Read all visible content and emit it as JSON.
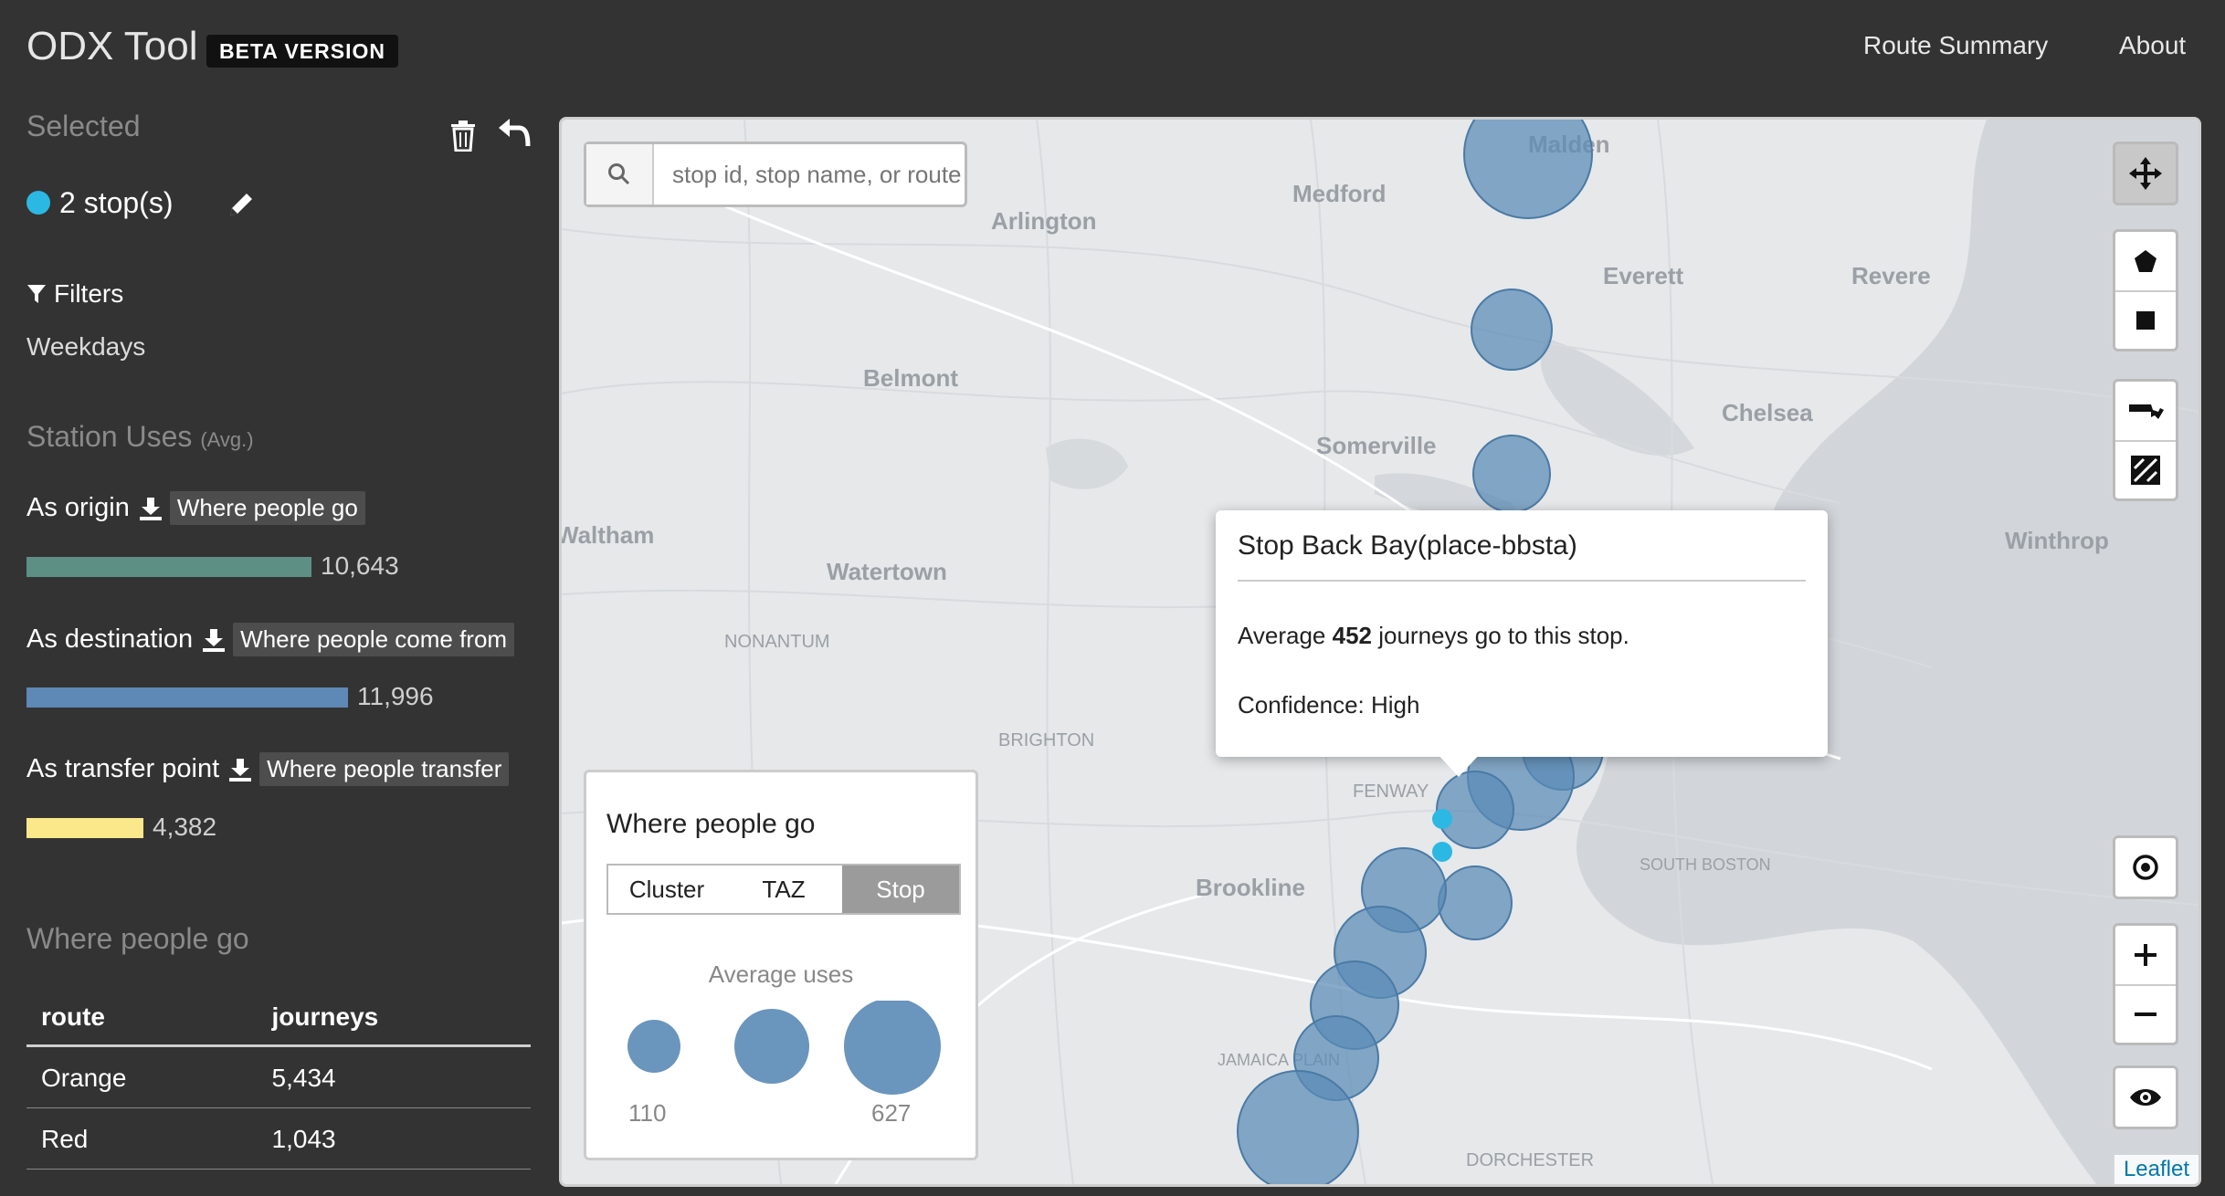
{
  "header": {
    "app_title": "ODX Tool",
    "badge": "BETA VERSION",
    "nav": [
      "Route Summary",
      "About"
    ]
  },
  "sidebar": {
    "selected_heading": "Selected",
    "stops_label": "2 stop(s)",
    "filters_label": "Filters",
    "filter_value": "Weekdays",
    "uses_heading": "Station Uses",
    "uses_sub": "(Avg.)",
    "uses": [
      {
        "label": "As origin",
        "link": "Where people go",
        "value": "10,643",
        "fraction": 0.887,
        "color": "#5e8f84"
      },
      {
        "label": "As destination",
        "link": "Where people come from",
        "value": "11,996",
        "fraction": 1.0,
        "color": "#5e88b6"
      },
      {
        "label": "As transfer point",
        "link": "Where people transfer",
        "value": "4,382",
        "fraction": 0.365,
        "color": "#fbe88a"
      }
    ],
    "go_heading": "Where people go",
    "table": {
      "headers": [
        "route",
        "journeys"
      ],
      "rows": [
        [
          "Orange",
          "5,434"
        ],
        [
          "Red",
          "1,043"
        ]
      ]
    }
  },
  "map": {
    "search_placeholder": "stop id, stop name, or route",
    "attribution": "Leaflet",
    "place_labels": [
      "Malden",
      "Medford",
      "Arlington",
      "Everett",
      "Revere",
      "Belmont",
      "Chelsea",
      "Somerville",
      "Winthrop",
      "Waltham",
      "Watertown",
      "NONANTUM",
      "BRIGHTON",
      "FENWAY",
      "Brookline",
      "SOUTH BOSTON",
      "JAMAICA PLAIN",
      "DORCHESTER"
    ],
    "popup": {
      "title": "Stop Back Bay(place-bbsta)",
      "line1_pre": "Average",
      "line1_num": "452",
      "line1_post": "journeys go to this stop.",
      "line2": "Confidence: High"
    },
    "legend": {
      "title": "Where people go",
      "tabs": [
        "Cluster",
        "TAZ",
        "Stop"
      ],
      "active_tab": "Stop",
      "subtitle": "Average uses",
      "min_label": "110",
      "max_label": "627"
    },
    "colors": {
      "bubble": "#5a8ab5",
      "selected_stop": "#2bb8e3"
    }
  }
}
